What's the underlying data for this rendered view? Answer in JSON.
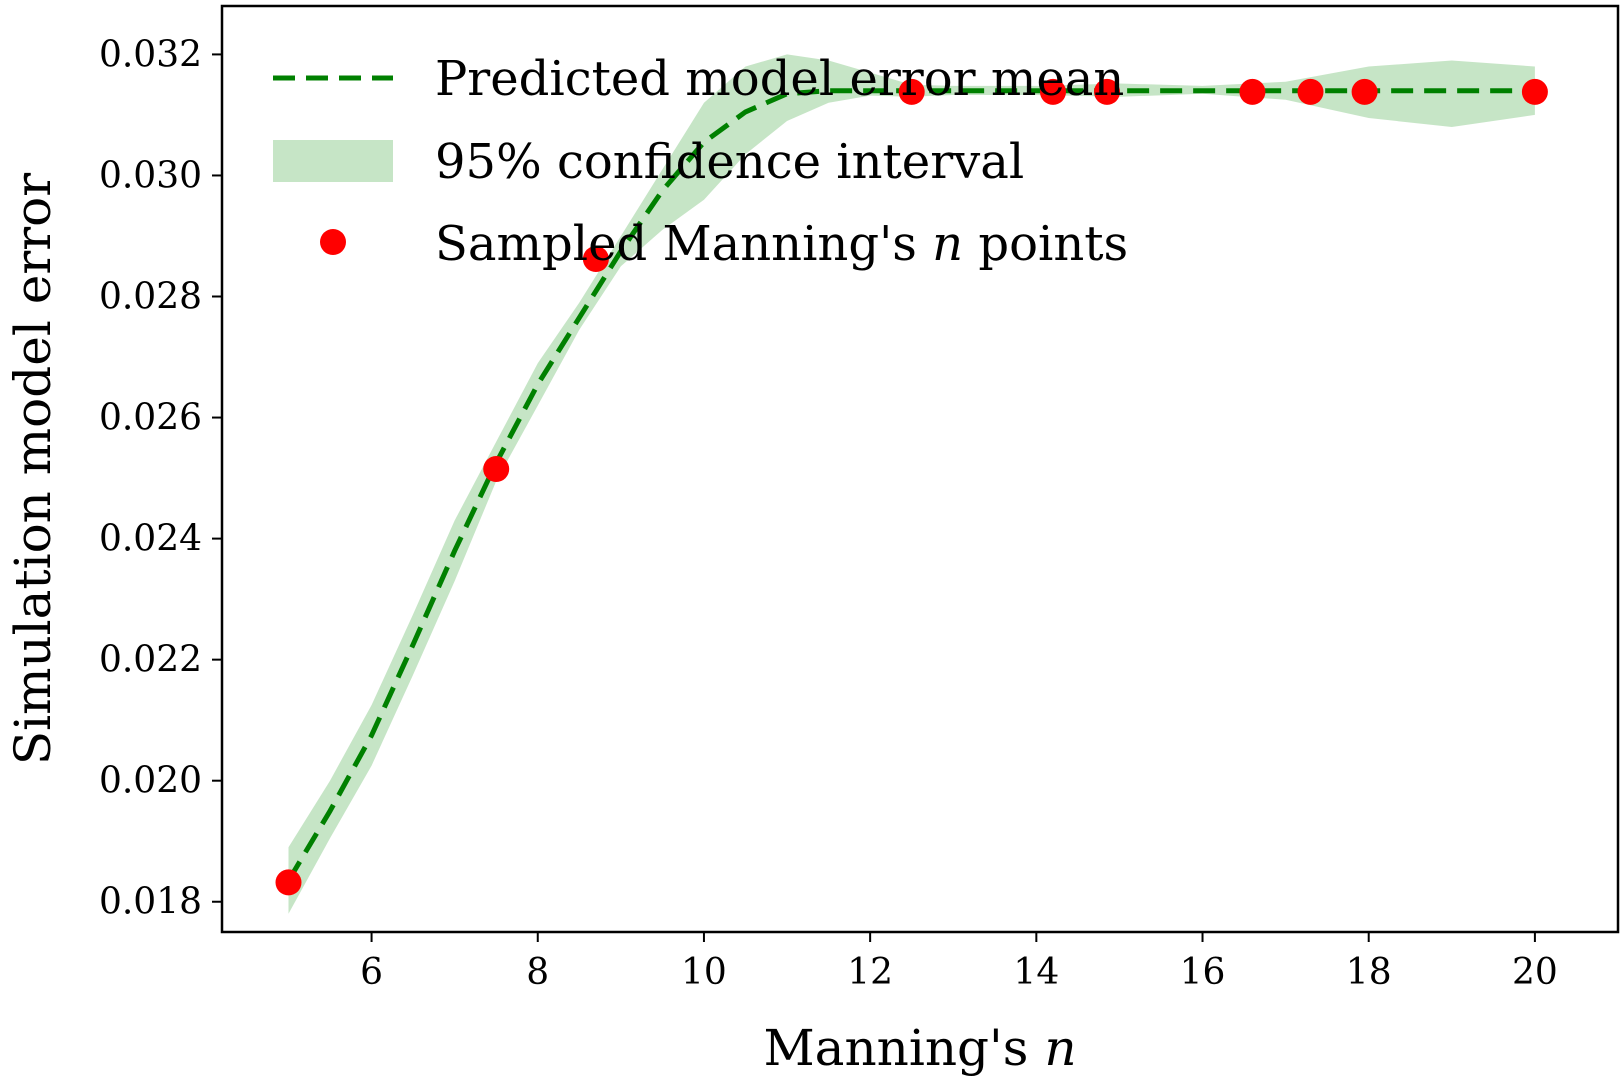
{
  "chart_data": {
    "type": "line",
    "xlabel": "Manning's",
    "xlabel_italic": "n",
    "ylabel": "Simulation model error",
    "xlim": [
      4.2,
      21.0
    ],
    "ylim": [
      0.0175,
      0.0328
    ],
    "xticks": [
      6,
      8,
      10,
      12,
      14,
      16,
      18,
      20
    ],
    "xtick_labels": [
      "6",
      "8",
      "10",
      "12",
      "14",
      "16",
      "18",
      "20"
    ],
    "yticks": [
      0.018,
      0.02,
      0.022,
      0.024,
      0.026,
      0.028,
      0.03,
      0.032
    ],
    "ytick_labels": [
      "0.018",
      "0.020",
      "0.022",
      "0.024",
      "0.026",
      "0.028",
      "0.030",
      "0.032"
    ],
    "grid": false,
    "legend_position": "top-left",
    "colors": {
      "mean": "#008000",
      "ci": "#b3dcb3",
      "points": "#ff0000"
    },
    "series": [
      {
        "name": "Predicted model error mean",
        "kind": "dashed-line",
        "x": [
          5.0,
          5.5,
          6.0,
          6.5,
          7.0,
          7.5,
          8.0,
          8.5,
          9.0,
          9.5,
          10.0,
          10.5,
          11.0,
          11.5,
          12.0,
          12.5,
          13.0,
          14.0,
          15.0,
          16.0,
          17.0,
          18.0,
          19.0,
          20.0
        ],
        "y": [
          0.01835,
          0.0195,
          0.02075,
          0.02225,
          0.0238,
          0.02525,
          0.02655,
          0.02765,
          0.02875,
          0.02975,
          0.03055,
          0.03105,
          0.03135,
          0.0314,
          0.0314,
          0.0314,
          0.0314,
          0.0314,
          0.0314,
          0.0314,
          0.0314,
          0.0314,
          0.0314,
          0.0314
        ]
      },
      {
        "name": "95% confidence interval",
        "kind": "band",
        "x": [
          5.0,
          5.5,
          6.0,
          6.5,
          7.0,
          7.5,
          8.0,
          8.5,
          9.0,
          9.5,
          10.0,
          10.5,
          11.0,
          11.5,
          12.0,
          12.5,
          13.0,
          14.0,
          15.0,
          16.0,
          17.0,
          18.0,
          19.0,
          20.0
        ],
        "lower": [
          0.0178,
          0.01905,
          0.02025,
          0.02175,
          0.0233,
          0.02495,
          0.0262,
          0.02745,
          0.0285,
          0.0291,
          0.0296,
          0.03035,
          0.0309,
          0.0312,
          0.03132,
          0.0313,
          0.03133,
          0.03133,
          0.0313,
          0.03135,
          0.03125,
          0.03095,
          0.0308,
          0.031
        ],
        "upper": [
          0.0189,
          0.02,
          0.02125,
          0.02275,
          0.0243,
          0.0256,
          0.0269,
          0.0279,
          0.029,
          0.0301,
          0.0312,
          0.0318,
          0.032,
          0.0319,
          0.0317,
          0.0315,
          0.03148,
          0.03148,
          0.03152,
          0.03148,
          0.03155,
          0.0318,
          0.0319,
          0.0318
        ]
      },
      {
        "name": "Sampled Manning's",
        "name_italic": "n",
        "name_suffix": "points",
        "kind": "scatter",
        "x": [
          5.0,
          7.5,
          8.7,
          12.5,
          14.2,
          14.85,
          16.6,
          17.3,
          17.95,
          20.0
        ],
        "y": [
          0.01832,
          0.02515,
          0.02862,
          0.03138,
          0.03138,
          0.03138,
          0.03138,
          0.03138,
          0.03138,
          0.03138
        ]
      }
    ]
  }
}
